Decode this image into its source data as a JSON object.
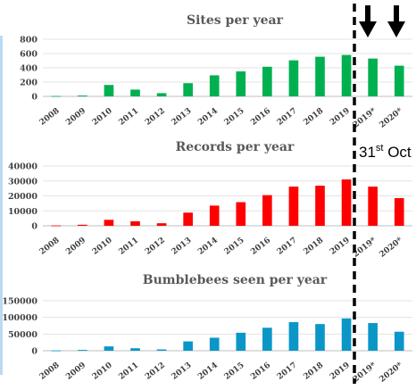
{
  "chart_data": [
    {
      "type": "bar",
      "title": "Sites per year",
      "categories": [
        "2008",
        "2009",
        "2010",
        "2011",
        "2012",
        "2013",
        "2014",
        "2015",
        "2016",
        "2017",
        "2018",
        "2019",
        "2019*",
        "2020*"
      ],
      "values": [
        5,
        12,
        160,
        95,
        45,
        185,
        295,
        350,
        415,
        505,
        555,
        580,
        530,
        430
      ],
      "ylim": [
        0,
        800
      ],
      "yticks": [
        "0",
        "200",
        "400",
        "600",
        "800"
      ],
      "color": "#00b050",
      "grid": true
    },
    {
      "type": "bar",
      "title": "Records per year",
      "categories": [
        "2008",
        "2009",
        "2010",
        "2011",
        "2012",
        "2013",
        "2014",
        "2015",
        "2016",
        "2017",
        "2018",
        "2019",
        "2019*",
        "2020*"
      ],
      "values": [
        200,
        700,
        4000,
        3000,
        1700,
        8800,
        13500,
        15800,
        20500,
        26200,
        26800,
        31000,
        26200,
        18500
      ],
      "ylim": [
        0,
        40000
      ],
      "yticks": [
        "0",
        "10000",
        "20000",
        "30000",
        "40000"
      ],
      "color": "#ff0000",
      "grid": true
    },
    {
      "type": "bar",
      "title": "Bumblebees seen per year",
      "categories": [
        "2008",
        "2009",
        "2010",
        "2011",
        "2012",
        "2013",
        "2014",
        "2015",
        "2016",
        "2017",
        "2018",
        "2019",
        "2019*",
        "2020*"
      ],
      "values": [
        800,
        2500,
        13000,
        7500,
        4000,
        28000,
        39000,
        54000,
        69000,
        86000,
        80000,
        97000,
        83000,
        57000
      ],
      "ylim": [
        0,
        150000
      ],
      "yticks": [
        "0",
        "50000",
        "100000",
        "150000"
      ],
      "color": "#0b96c8",
      "grid": true
    }
  ],
  "annotation": {
    "note_main": "31",
    "note_sup": "st",
    "note_rest": " Oct",
    "divider": "dashed vertical line between 2019 and 2019*",
    "arrows": "two black down arrows above 2019* and 2020*"
  }
}
